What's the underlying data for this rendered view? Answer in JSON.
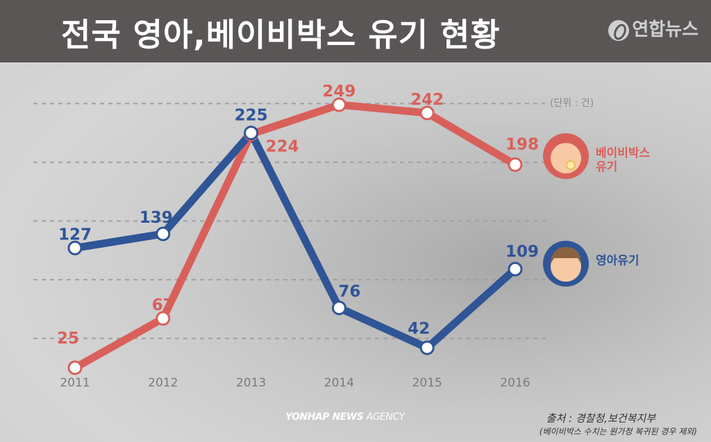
{
  "header": {
    "title": "전국 영아,베이비박스 유기 현황",
    "logo": "연합뉴스"
  },
  "unit": "(단위 : 건)",
  "chart_data": {
    "type": "line",
    "title": "전국 영아,베이비박스 유기 현황",
    "categories": [
      "2011",
      "2012",
      "2013",
      "2014",
      "2015",
      "2016"
    ],
    "series": [
      {
        "name": "베이비박스 유기",
        "color": "#d9605a",
        "values": [
          25,
          67,
          224,
          249,
          242,
          198
        ]
      },
      {
        "name": "영아유기",
        "color": "#2f5597",
        "values": [
          127,
          139,
          225,
          76,
          42,
          109
        ]
      }
    ],
    "gridlines": [
      50,
      100,
      150,
      200,
      250
    ],
    "grid": true,
    "ylim": [
      0,
      260
    ],
    "legend_placement": "right",
    "legend_icons": [
      "baby-with-pacifier-icon",
      "crying-child-icon"
    ]
  },
  "legend": {
    "babybox_line1": "베이비박스",
    "babybox_line2": "유기",
    "infant": "영아유기"
  },
  "footer": {
    "agency_bold": "YONHAP NEWS",
    "agency_light": "AGENCY",
    "source": "출처 : 경찰청,보건복지부",
    "note": "(베이비박스 수치는 원가정 복귀된 경우 제외)"
  }
}
